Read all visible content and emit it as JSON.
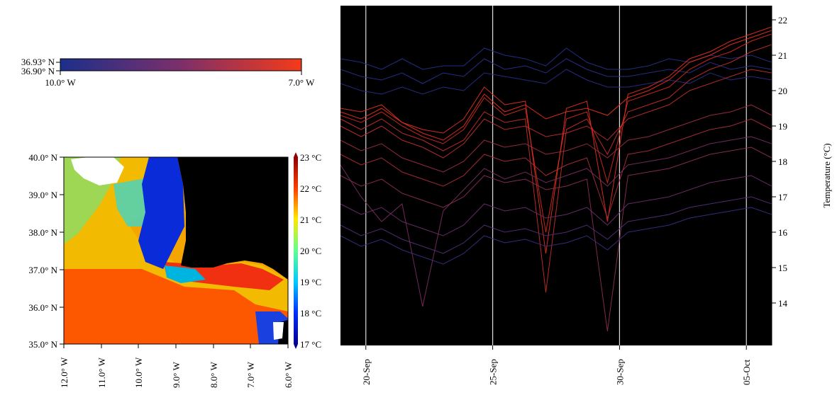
{
  "legend_colorbar": {
    "lat_labels": [
      "36.93° N",
      "36.90° N"
    ],
    "lon_labels": [
      "10.0° W",
      "7.0° W"
    ]
  },
  "map": {
    "lat_ticks": [
      "40.0° N",
      "39.0° N",
      "38.0° N",
      "37.0° N",
      "36.0° N",
      "35.0° N"
    ],
    "lon_ticks": [
      "12.0° W",
      "11.0° W",
      "10.0° W",
      "9.0° W",
      "8.0° W",
      "7.0° W",
      "6.0° W"
    ],
    "colorbar_labels": [
      "23 °C",
      "22 °C",
      "21 °C",
      "20 °C",
      "19 °C",
      "18 °C",
      "17 °C"
    ],
    "colors": {
      "land": "#000000",
      "cloud": "#ffffff"
    }
  },
  "chart_data": {
    "type": "line",
    "title": "",
    "xlabel": "",
    "ylabel": "Temperature (°C)",
    "x_ticks": [
      "20-Sep",
      "25-Sep",
      "30-Sep",
      "05-Oct"
    ],
    "y_ticks": [
      14,
      15,
      16,
      17,
      18,
      19,
      20,
      21,
      22
    ],
    "xlim": [
      "2017-09-19",
      "2017-10-06"
    ],
    "ylim": [
      12.8,
      22.4
    ],
    "grid": "vertical lines at x ticks",
    "background": "#000000",
    "color_encoding": "longitude: blue (10.0° W) to red (7.0° W)",
    "series": [
      {
        "color": "#25338f",
        "values": [
          20.9,
          20.8,
          20.6,
          20.9,
          20.6,
          20.7,
          20.7,
          21.2,
          21.0,
          20.9,
          20.7,
          21.2,
          20.8,
          20.6,
          20.6,
          20.7,
          20.9,
          20.8,
          21.0,
          20.9,
          21.0,
          20.8
        ]
      },
      {
        "color": "#2b3192",
        "values": [
          20.6,
          20.4,
          20.3,
          20.5,
          20.2,
          20.5,
          20.4,
          20.9,
          20.6,
          20.7,
          20.5,
          20.9,
          20.6,
          20.4,
          20.4,
          20.5,
          20.6,
          20.5,
          20.8,
          20.6,
          20.7,
          20.6
        ]
      },
      {
        "color": "#2a2f8d",
        "values": [
          20.2,
          20.0,
          19.9,
          20.1,
          19.9,
          20.1,
          20.0,
          20.5,
          20.4,
          20.3,
          20.2,
          20.6,
          20.3,
          20.1,
          20.1,
          20.2,
          20.3,
          20.2,
          20.5,
          20.3,
          20.4,
          20.3
        ]
      },
      {
        "color": "#d82a20",
        "values": [
          19.3,
          19.1,
          19.4,
          19.0,
          18.7,
          18.5,
          18.9,
          19.8,
          19.3,
          19.5,
          16.0,
          19.2,
          19.4,
          17.4,
          19.7,
          19.9,
          20.1,
          20.6,
          20.9,
          21.1,
          21.4,
          21.6
        ]
      },
      {
        "color": "#e8321f",
        "values": [
          19.5,
          19.4,
          19.6,
          19.1,
          18.9,
          18.8,
          19.2,
          20.1,
          19.6,
          19.7,
          15.4,
          19.5,
          19.7,
          16.3,
          19.9,
          20.1,
          20.4,
          20.9,
          21.1,
          21.4,
          21.6,
          21.8
        ]
      },
      {
        "color": "#c8302a",
        "values": [
          19.2,
          18.9,
          19.2,
          18.8,
          18.6,
          18.3,
          18.6,
          19.4,
          19.1,
          19.2,
          14.3,
          18.9,
          19.2,
          18.2,
          19.4,
          19.6,
          19.8,
          20.3,
          20.6,
          20.8,
          21.1,
          21.3
        ]
      },
      {
        "color": "#b02f3a",
        "values": [
          18.2,
          17.9,
          18.1,
          17.7,
          17.5,
          17.3,
          17.6,
          18.2,
          18.0,
          18.1,
          17.6,
          17.9,
          18.1,
          16.4,
          18.2,
          18.3,
          18.5,
          18.7,
          18.9,
          19.0,
          19.2,
          18.9
        ]
      },
      {
        "color": "#8e2f55",
        "values": [
          17.6,
          17.3,
          17.5,
          17.1,
          16.9,
          16.7,
          17.0,
          17.6,
          17.4,
          17.5,
          17.2,
          17.3,
          17.5,
          13.2,
          17.6,
          17.7,
          17.8,
          18.0,
          18.2,
          18.3,
          18.4,
          18.1
        ]
      },
      {
        "color": "#6f2f6e",
        "values": [
          16.8,
          16.5,
          16.7,
          16.3,
          16.1,
          15.9,
          16.2,
          16.8,
          16.6,
          16.7,
          16.4,
          16.5,
          16.7,
          16.2,
          16.8,
          16.9,
          17.0,
          17.2,
          17.4,
          17.5,
          17.6,
          17.3
        ]
      },
      {
        "color": "#55307d",
        "values": [
          16.2,
          15.9,
          16.1,
          15.8,
          15.6,
          15.4,
          15.7,
          16.2,
          16.0,
          16.1,
          15.9,
          16.0,
          16.2,
          15.8,
          16.3,
          16.4,
          16.5,
          16.7,
          16.8,
          16.9,
          17.0,
          16.8
        ]
      },
      {
        "color": "#7d2e62",
        "values": [
          17.9,
          17.0,
          16.3,
          16.8,
          13.9,
          16.6,
          17.2,
          17.8,
          17.5,
          17.7,
          17.4,
          17.6,
          17.8,
          17.3,
          17.9,
          18.0,
          18.1,
          18.3,
          18.5,
          18.6,
          18.7,
          18.5
        ]
      },
      {
        "color": "#a32f44",
        "values": [
          18.6,
          18.3,
          18.5,
          18.1,
          17.9,
          17.7,
          18.0,
          18.6,
          18.4,
          18.5,
          18.2,
          18.3,
          18.5,
          18.1,
          18.6,
          18.7,
          18.9,
          19.1,
          19.3,
          19.4,
          19.6,
          19.3
        ]
      },
      {
        "color": "#f0321c",
        "values": [
          19.4,
          19.2,
          19.5,
          19.1,
          18.8,
          18.6,
          19.0,
          19.9,
          19.4,
          19.6,
          19.2,
          19.4,
          19.5,
          19.3,
          19.8,
          20.0,
          20.3,
          20.8,
          21.0,
          21.3,
          21.5,
          21.7
        ]
      },
      {
        "color": "#3c3086",
        "values": [
          15.9,
          15.6,
          15.8,
          15.5,
          15.3,
          15.1,
          15.4,
          15.9,
          15.7,
          15.8,
          15.6,
          15.7,
          15.9,
          15.5,
          16.0,
          16.1,
          16.2,
          16.4,
          16.5,
          16.6,
          16.7,
          16.5
        ]
      },
      {
        "color": "#c42f30",
        "values": [
          19.0,
          18.7,
          19.0,
          18.6,
          18.4,
          18.1,
          18.5,
          19.2,
          18.9,
          19.0,
          18.7,
          18.8,
          19.0,
          18.6,
          19.2,
          19.4,
          19.6,
          20.0,
          20.2,
          20.4,
          20.6,
          20.5
        ]
      }
    ]
  }
}
